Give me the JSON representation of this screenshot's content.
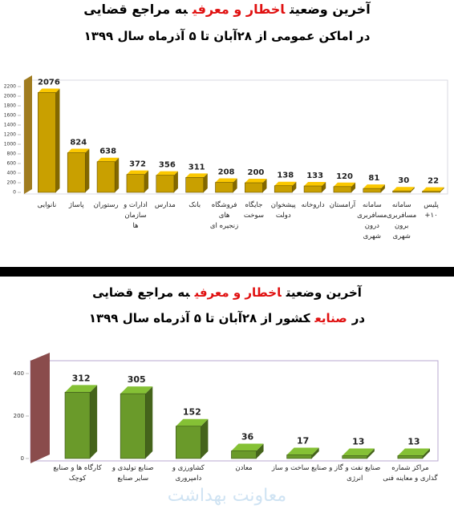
{
  "chart_data": [
    {
      "type": "bar3d",
      "title": [
        {
          "text": "آخرین وضعیت",
          "color": "#000000"
        },
        {
          "text": "اخطار و معرفی",
          "color": "#e01010"
        },
        {
          "text": "به مراجع قضایی",
          "color": "#000000"
        }
      ],
      "subtitle": [
        {
          "text": "در اماکن عمومی از ۲۸آبان تا ۵ آذرماه سال ۱۳۹۹",
          "color": "#000000"
        }
      ],
      "categories": [
        "نانوایی",
        "پاساژ",
        "رستوران",
        "ادارات و سازمان ها",
        "مدارس",
        "بانک",
        "فروشگاه های زنجیره ای",
        "جایگاه سوخت",
        "پیشخوان دولت",
        "داروخانه",
        "آرامستان",
        "سامانه مسافربری درون شهری",
        "سامانه مسافربری برون شهری",
        "پلیس ۱۰+"
      ],
      "values": [
        2076,
        824,
        638,
        372,
        356,
        311,
        208,
        200,
        138,
        133,
        120,
        81,
        30,
        22
      ],
      "color": "#c9a000",
      "ylim": [
        0,
        2200
      ],
      "yticks": [
        0,
        200,
        400,
        600,
        800,
        1000,
        1200,
        1400,
        1600,
        1800,
        2000,
        2200
      ]
    },
    {
      "type": "bar3d",
      "title": [
        {
          "text": "آخرین وضعیت",
          "color": "#000000"
        },
        {
          "text": "اخطار و معرفی",
          "color": "#e01010"
        },
        {
          "text": "به مراجع قضایی",
          "color": "#000000"
        }
      ],
      "subtitle": [
        {
          "text": "در",
          "color": "#000000"
        },
        {
          "text": "صنایع",
          "color": "#e01010"
        },
        {
          "text": "کشور از ۲۸آبان تا ۵ آذرماه سال ۱۳۹۹",
          "color": "#000000"
        }
      ],
      "categories": [
        "کارگاه ها و صنایع کوچک",
        "صنایع تولیدی و سایر صنایع",
        "کشاورزی و دامپروری",
        "معادن",
        "صنایع ساخت و ساز",
        "صنایع نفت و گاز و انرژی",
        "مراکز شماره گذاری و معاینه فنی"
      ],
      "values": [
        312,
        305,
        152,
        36,
        17,
        13,
        13
      ],
      "color": "#6a9a2a",
      "ylim": [
        0,
        400
      ],
      "yticks": [
        0,
        200,
        400
      ]
    }
  ],
  "watermark": "معاونت بهداشت"
}
